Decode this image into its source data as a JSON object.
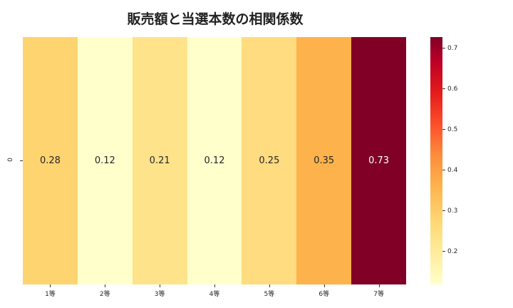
{
  "title": "販売額と当選本数の相関係数",
  "y_label": "0",
  "cells": [
    {
      "label": "1等",
      "value": "0.28",
      "color": "#fed470",
      "text_color": "#262626"
    },
    {
      "label": "2等",
      "value": "0.12",
      "color": "#ffffcc",
      "text_color": "#262626"
    },
    {
      "label": "3等",
      "value": "0.21",
      "color": "#fee38b",
      "text_color": "#262626"
    },
    {
      "label": "4等",
      "value": "0.12",
      "color": "#ffffcc",
      "text_color": "#262626"
    },
    {
      "label": "5等",
      "value": "0.25",
      "color": "#fedc7f",
      "text_color": "#262626"
    },
    {
      "label": "6等",
      "value": "0.35",
      "color": "#feb24c",
      "text_color": "#262626"
    },
    {
      "label": "7等",
      "value": "0.73",
      "color": "#800026",
      "text_color": "#ffffff"
    }
  ],
  "colorbar": {
    "ticks": [
      {
        "label": "0.7",
        "pos": 4.5
      },
      {
        "label": "0.6",
        "pos": 20.9
      },
      {
        "label": "0.5",
        "pos": 37.4
      },
      {
        "label": "0.4",
        "pos": 53.8
      },
      {
        "label": "0.3",
        "pos": 70.2
      },
      {
        "label": "0.2",
        "pos": 86.6
      }
    ]
  },
  "chart_data": {
    "type": "heatmap",
    "title": "販売額と当選本数の相関係数",
    "x": [
      "1等",
      "2等",
      "3等",
      "4等",
      "5等",
      "6等",
      "7等"
    ],
    "y": [
      "0"
    ],
    "values": [
      [
        0.28,
        0.12,
        0.21,
        0.12,
        0.25,
        0.35,
        0.73
      ]
    ],
    "colormap": "YlOrRd",
    "colorbar_range": [
      0.12,
      0.73
    ],
    "colorbar_ticks": [
      0.2,
      0.3,
      0.4,
      0.5,
      0.6,
      0.7
    ],
    "annotated": true
  }
}
